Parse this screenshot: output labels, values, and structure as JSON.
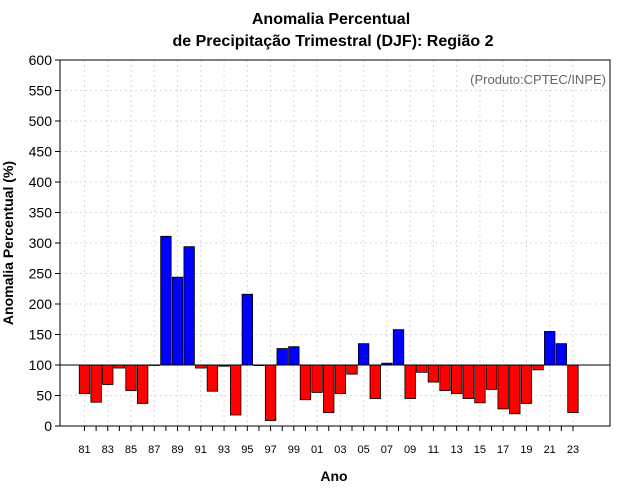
{
  "chart_data": {
    "type": "bar",
    "title": "Anomalia Percentual",
    "subtitle": "de Precipitação Trimestral (DJF): Região 2",
    "xlabel": "Ano",
    "ylabel": "Anomalia Percentual (%)",
    "credit": "(Produto:CPTEC/INPE)",
    "ylim": [
      0,
      600
    ],
    "yticks": [
      0,
      50,
      100,
      150,
      200,
      250,
      300,
      350,
      400,
      450,
      500,
      550,
      600
    ],
    "baseline": 100,
    "grid": true,
    "colors": {
      "above": "#0000ff",
      "below": "#ff0000"
    },
    "categories": [
      "81",
      "82",
      "83",
      "84",
      "85",
      "86",
      "87",
      "88",
      "89",
      "90",
      "91",
      "92",
      "93",
      "94",
      "95",
      "96",
      "97",
      "98",
      "99",
      "00",
      "01",
      "02",
      "03",
      "04",
      "05",
      "06",
      "07",
      "08",
      "09",
      "10",
      "11",
      "12",
      "13",
      "14",
      "15",
      "16",
      "17",
      "18",
      "19",
      "20",
      "21",
      "22",
      "23"
    ],
    "tick_labels": [
      "81",
      "83",
      "85",
      "87",
      "89",
      "91",
      "93",
      "95",
      "97",
      "99",
      "01",
      "03",
      "05",
      "07",
      "09",
      "11",
      "13",
      "15",
      "17",
      "19",
      "21",
      "23"
    ],
    "values": [
      53,
      39,
      68,
      95,
      58,
      37,
      100,
      311,
      244,
      294,
      95,
      57,
      98,
      18,
      216,
      99,
      9,
      127,
      130,
      43,
      55,
      22,
      53,
      85,
      135,
      45,
      103,
      158,
      45,
      88,
      72,
      58,
      53,
      45,
      38,
      60,
      28,
      20,
      37,
      92,
      155,
      135,
      22
    ]
  }
}
